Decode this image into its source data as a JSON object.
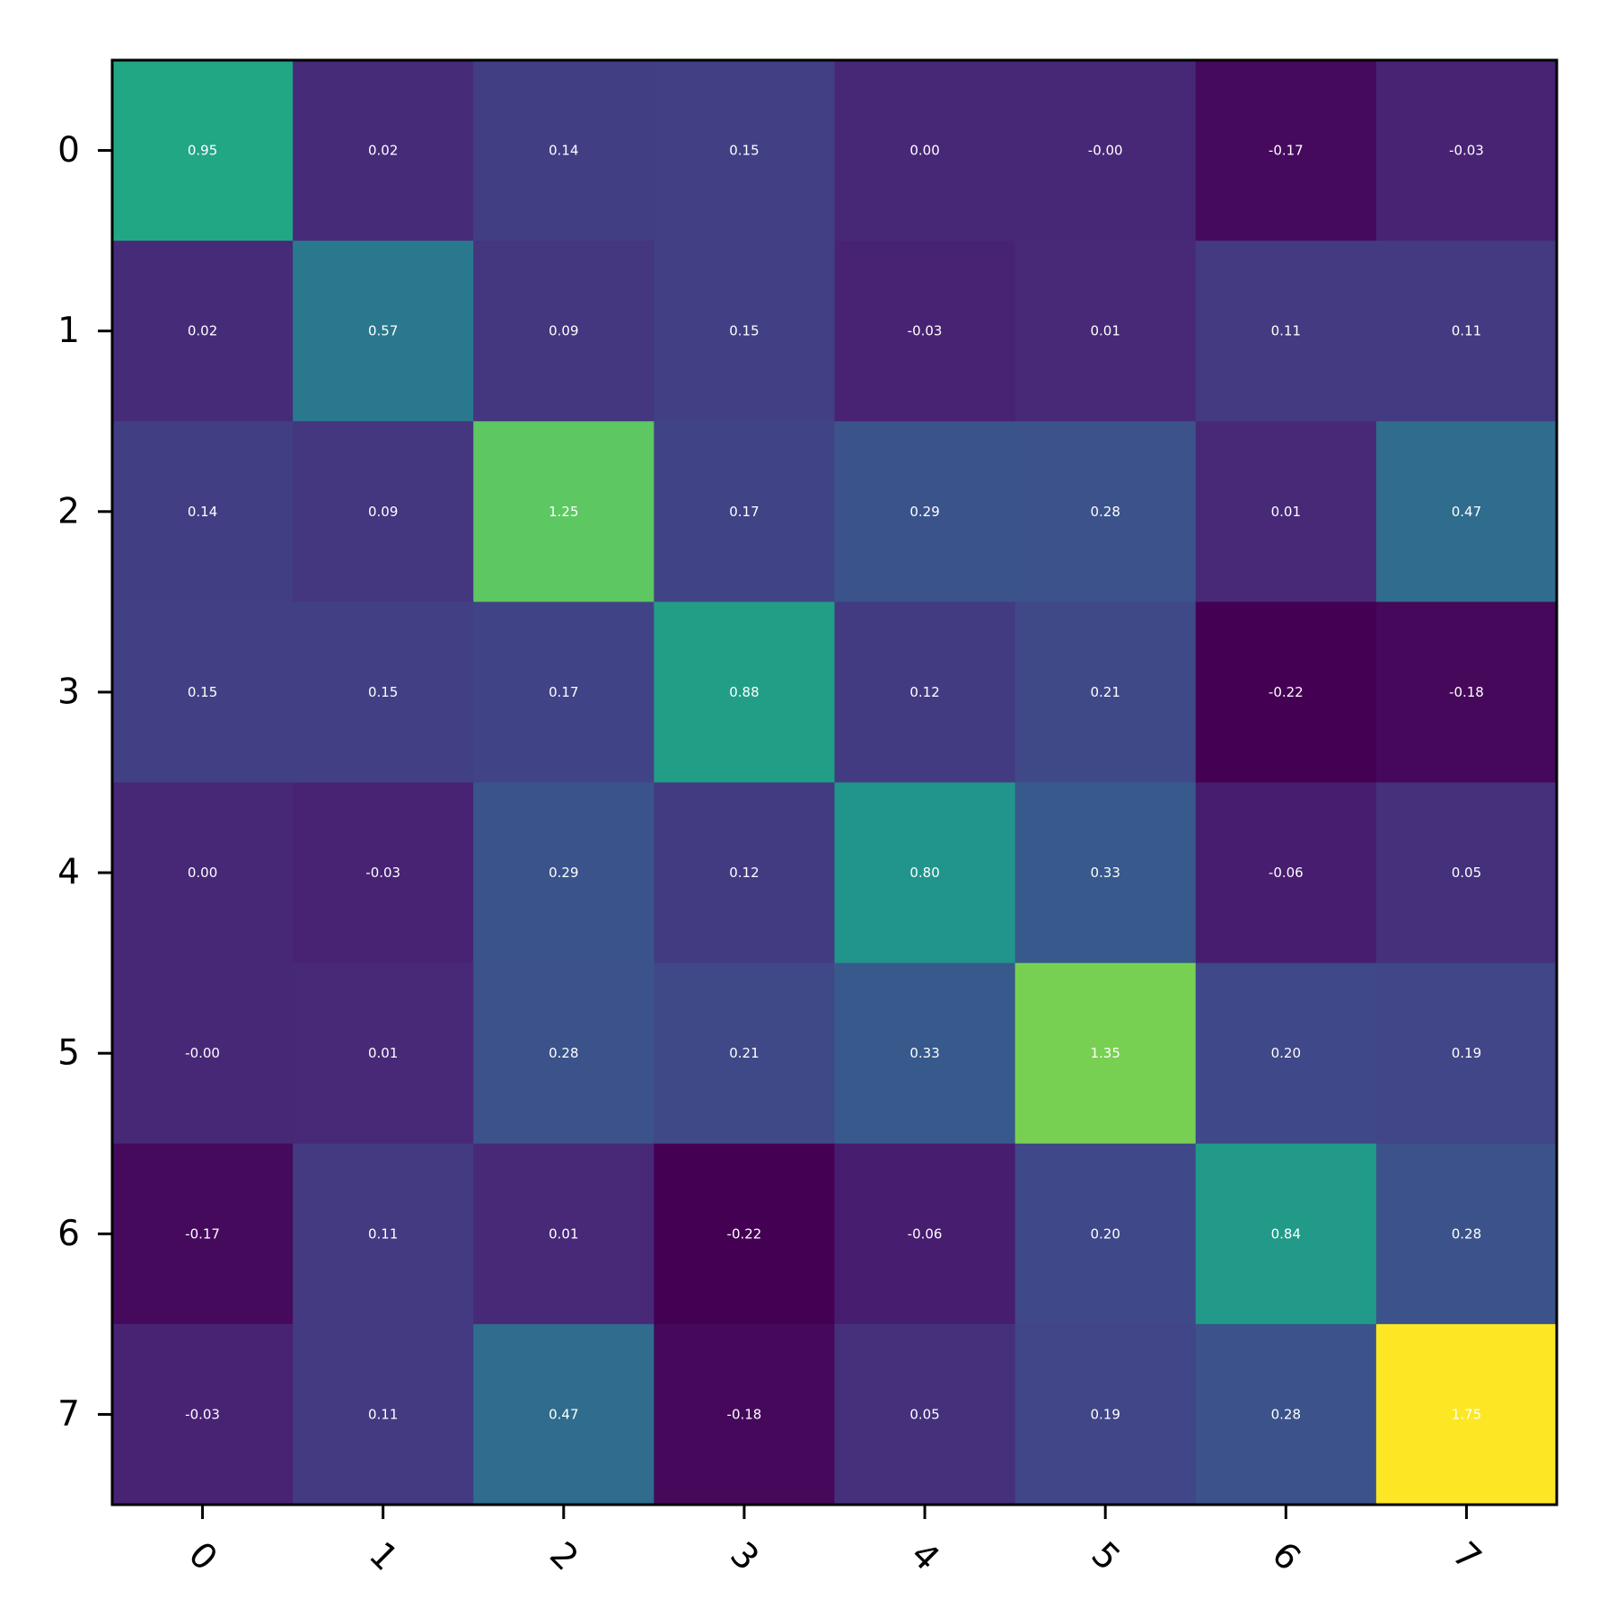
{
  "chart_data": {
    "type": "heatmap",
    "title": "",
    "xlabel": "",
    "ylabel": "",
    "x_ticks": [
      "0",
      "1",
      "2",
      "3",
      "4",
      "5",
      "6",
      "7"
    ],
    "y_ticks": [
      "0",
      "1",
      "2",
      "3",
      "4",
      "5",
      "6",
      "7"
    ],
    "x_tick_rotation": 45,
    "colormap": "viridis",
    "value_range": [
      -0.22,
      1.75
    ],
    "values": [
      [
        0.95,
        0.02,
        0.14,
        0.15,
        0.0,
        -0.0,
        -0.17,
        -0.03
      ],
      [
        0.02,
        0.57,
        0.09,
        0.15,
        -0.03,
        0.01,
        0.11,
        0.11
      ],
      [
        0.14,
        0.09,
        1.25,
        0.17,
        0.29,
        0.28,
        0.01,
        0.47
      ],
      [
        0.15,
        0.15,
        0.17,
        0.88,
        0.12,
        0.21,
        -0.22,
        -0.18
      ],
      [
        0.0,
        -0.03,
        0.29,
        0.12,
        0.8,
        0.33,
        -0.06,
        0.05
      ],
      [
        -0.0,
        0.01,
        0.28,
        0.21,
        0.33,
        1.35,
        0.2,
        0.19
      ],
      [
        -0.17,
        0.11,
        0.01,
        -0.22,
        -0.06,
        0.2,
        0.84,
        0.28
      ],
      [
        -0.03,
        0.11,
        0.47,
        -0.18,
        0.05,
        0.19,
        0.28,
        1.75
      ]
    ],
    "labels": [
      [
        "0.95",
        "0.02",
        "0.14",
        "0.15",
        "0.00",
        "-0.00",
        "-0.17",
        "-0.03"
      ],
      [
        "0.02",
        "0.57",
        "0.09",
        "0.15",
        "-0.03",
        "0.01",
        "0.11",
        "0.11"
      ],
      [
        "0.14",
        "0.09",
        "1.25",
        "0.17",
        "0.29",
        "0.28",
        "0.01",
        "0.47"
      ],
      [
        "0.15",
        "0.15",
        "0.17",
        "0.88",
        "0.12",
        "0.21",
        "-0.22",
        "-0.18"
      ],
      [
        "0.00",
        "-0.03",
        "0.29",
        "0.12",
        "0.80",
        "0.33",
        "-0.06",
        "0.05"
      ],
      [
        "-0.00",
        "0.01",
        "0.28",
        "0.21",
        "0.33",
        "1.35",
        "0.20",
        "0.19"
      ],
      [
        "-0.17",
        "0.11",
        "0.01",
        "-0.22",
        "-0.06",
        "0.20",
        "0.84",
        "0.28"
      ],
      [
        "-0.03",
        "0.11",
        "0.47",
        "-0.18",
        "0.05",
        "0.19",
        "0.28",
        "1.75"
      ]
    ],
    "grid": false,
    "legend": "none"
  }
}
